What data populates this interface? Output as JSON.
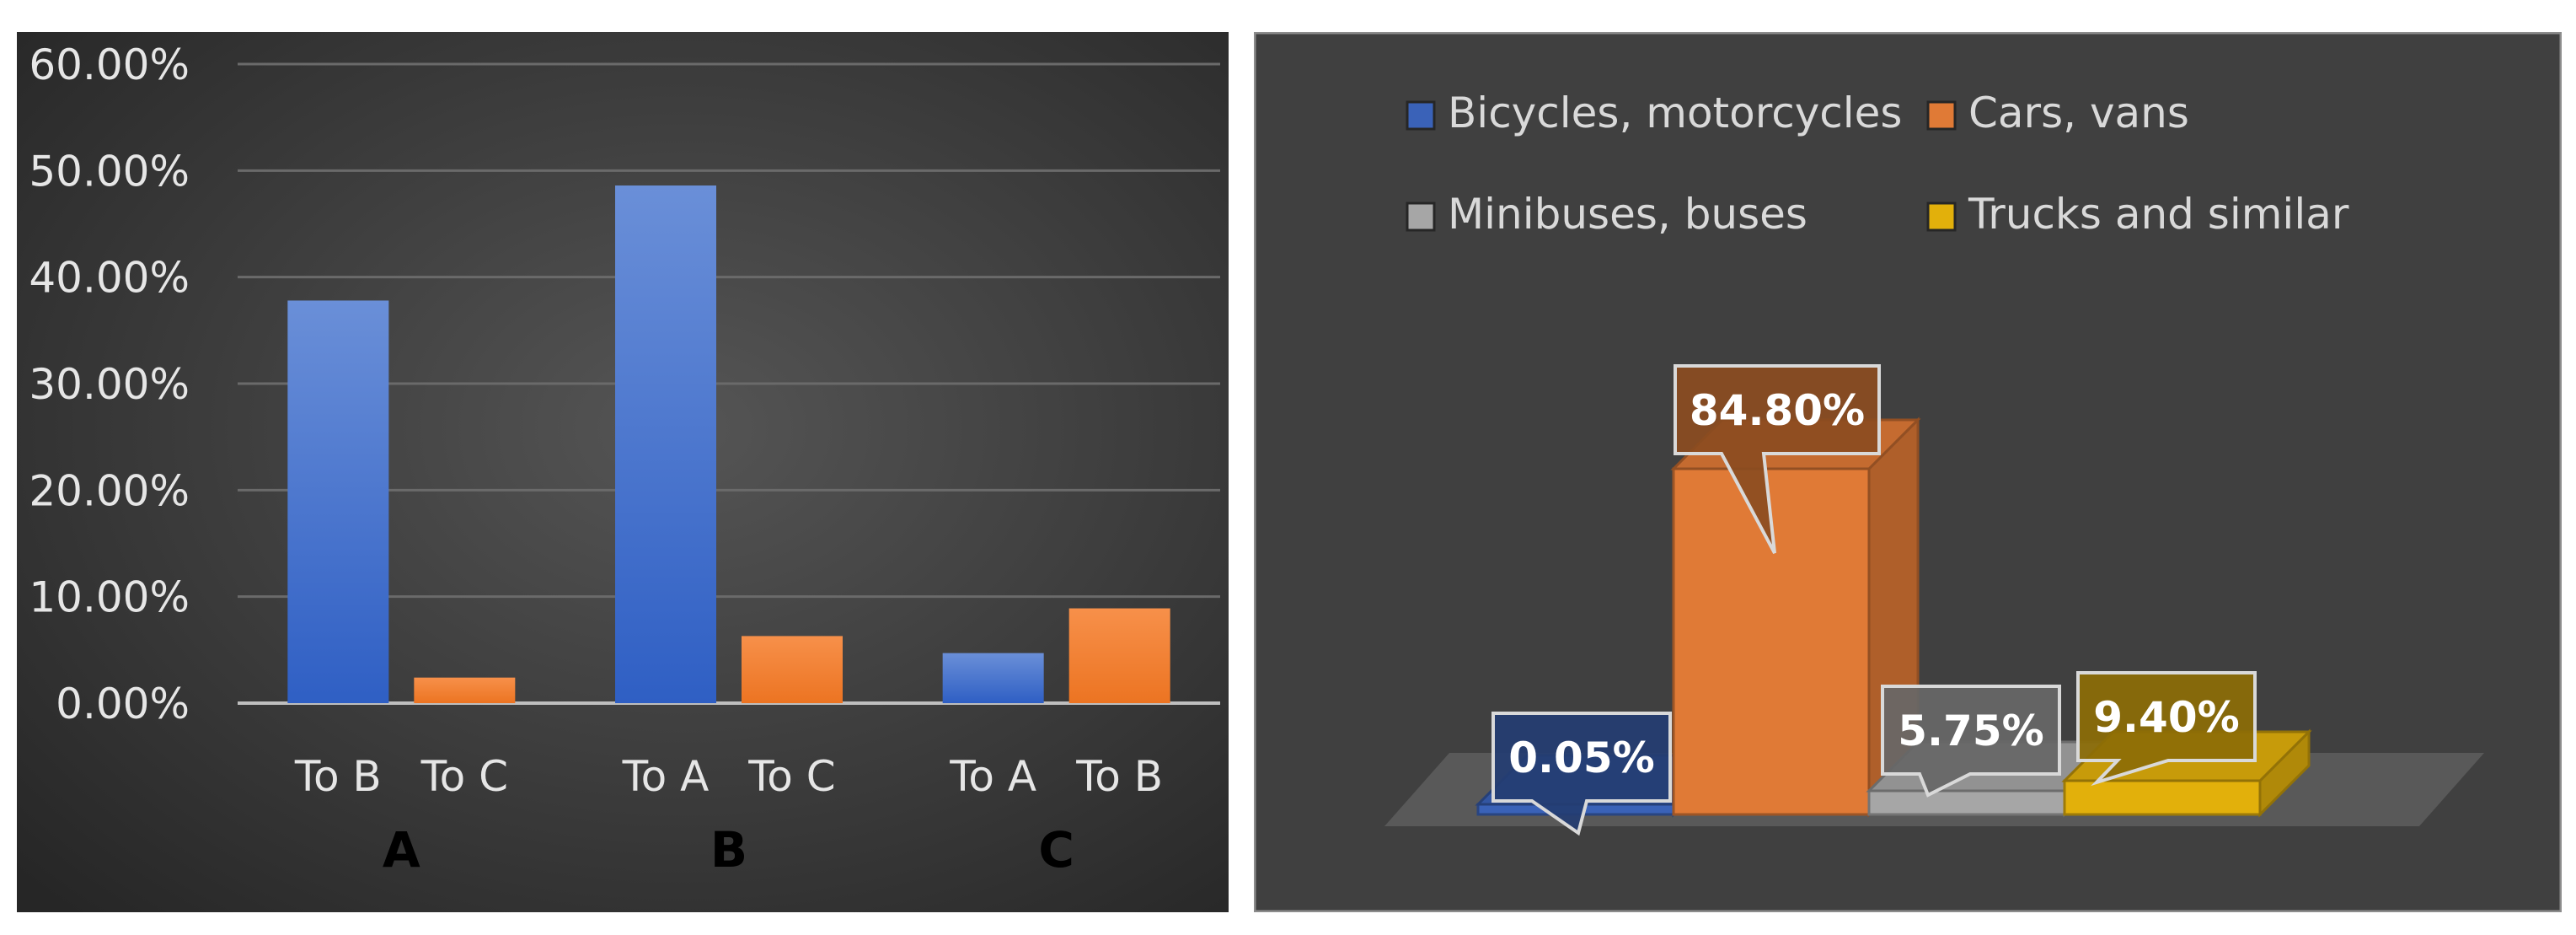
{
  "chart_data": [
    {
      "type": "bar",
      "title": "",
      "groups": [
        {
          "name": "A",
          "categories": [
            "To B",
            "To C"
          ],
          "values": [
            37.8,
            2.4
          ]
        },
        {
          "name": "B",
          "categories": [
            "To A",
            "To C"
          ],
          "values": [
            48.6,
            6.3
          ]
        },
        {
          "name": "C",
          "categories": [
            "To A",
            "To B"
          ],
          "values": [
            4.7,
            8.9
          ]
        }
      ],
      "y_ticks": [
        "0.00%",
        "10.00%",
        "20.00%",
        "30.00%",
        "40.00%",
        "50.00%",
        "60.00%"
      ],
      "ylim": [
        0,
        60
      ],
      "grid": true,
      "colors": {
        "first_bar": "#3f6fd0",
        "second_bar": "#f07c2c"
      }
    },
    {
      "type": "bar",
      "title": "",
      "categories": [
        "Bicycles, motorcycles",
        "Cars, vans",
        "Minibuses, buses",
        "Trucks and similar"
      ],
      "values": [
        0.05,
        84.8,
        5.75,
        9.4
      ],
      "data_labels": [
        "0.05%",
        "84.80%",
        "5.75%",
        "9.40%"
      ],
      "legend": {
        "position": "top",
        "entries": [
          "Bicycles, motorcycles",
          "Cars, vans",
          "Minibuses, buses",
          "Trucks and similar"
        ]
      },
      "colors": [
        "#3a62b8",
        "#e07a36",
        "#a6a6a6",
        "#e2b00b"
      ],
      "style": "3d"
    }
  ]
}
